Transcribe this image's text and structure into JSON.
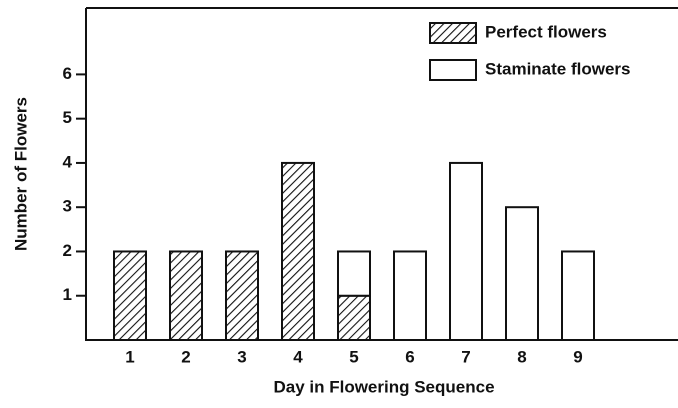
{
  "chart_data": {
    "type": "stacked-bar",
    "x_label": "Day in Flowering Sequence",
    "y_label": "Number of Flowers",
    "categories": [
      "1",
      "2",
      "3",
      "4",
      "5",
      "6",
      "7",
      "8",
      "9"
    ],
    "series": [
      {
        "name": "Perfect flowers",
        "color": "#ffffff",
        "pattern": "hatch",
        "values": [
          2,
          2,
          2,
          4,
          1,
          0,
          0,
          0,
          0
        ]
      },
      {
        "name": "Staminate flowers",
        "color": "#ffffff",
        "values": [
          0,
          0,
          0,
          0,
          1,
          2,
          4,
          3,
          2
        ]
      }
    ],
    "ylim": [
      0,
      7.5
    ],
    "yticks": [
      1,
      2,
      3,
      4,
      5,
      6
    ],
    "legend": "upper right",
    "grid": false
  }
}
